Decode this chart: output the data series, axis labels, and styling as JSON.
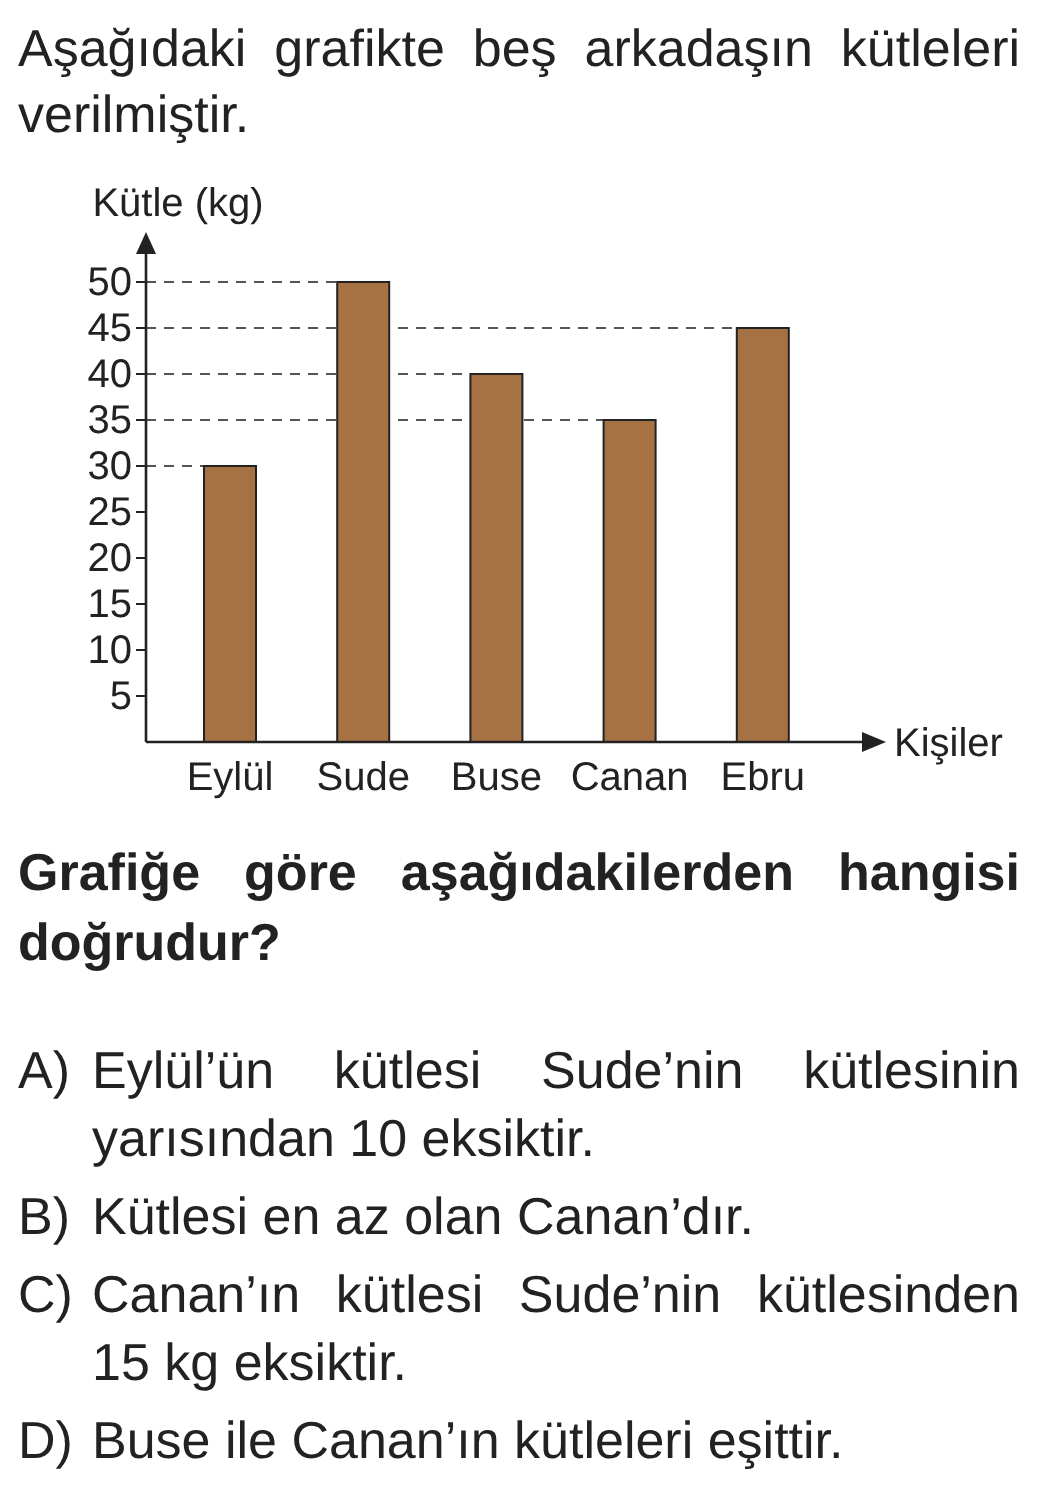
{
  "chart_data": {
    "type": "bar",
    "title": "Aşağıdaki grafikte beş arkadaşın kütleleri verilmiştir.",
    "xlabel": "Kişiler",
    "ylabel": "Kütle (kg)",
    "categories": [
      "Eylül",
      "Sude",
      "Buse",
      "Canan",
      "Ebru"
    ],
    "values": [
      30,
      50,
      40,
      35,
      45
    ],
    "color": "#a77243",
    "ylim": [
      0,
      55
    ],
    "yticks": [
      5,
      10,
      15,
      20,
      25,
      30,
      35,
      40,
      45,
      50
    ],
    "ref_lines": [
      {
        "axis": "y",
        "value": 50,
        "color": "#555555",
        "line_style": "dashed"
      },
      {
        "axis": "y",
        "value": 45,
        "color": "#555555",
        "line_style": "dashed"
      },
      {
        "axis": "y",
        "value": 40,
        "color": "#555555",
        "line_style": "dashed"
      },
      {
        "axis": "y",
        "value": 35,
        "color": "#555555",
        "line_style": "dashed"
      },
      {
        "axis": "y",
        "value": 30,
        "color": "#555555",
        "line_style": "dashed"
      }
    ],
    "annotations": [
      "Grafiğe göre aşağıdakilerden hangisi doğrudur?",
      "A) Eylül’ün kütlesi Sude’nin kütlesinin yarısından 10 eksiktir.",
      "B) Kütlesi en az olan Canan’dır.",
      "C) Canan’ın kütlesi Sude’nin kütlesinden 15 kg eksiktir.",
      "D) Buse ile Canan’ın kütleleri eşittir."
    ]
  }
}
